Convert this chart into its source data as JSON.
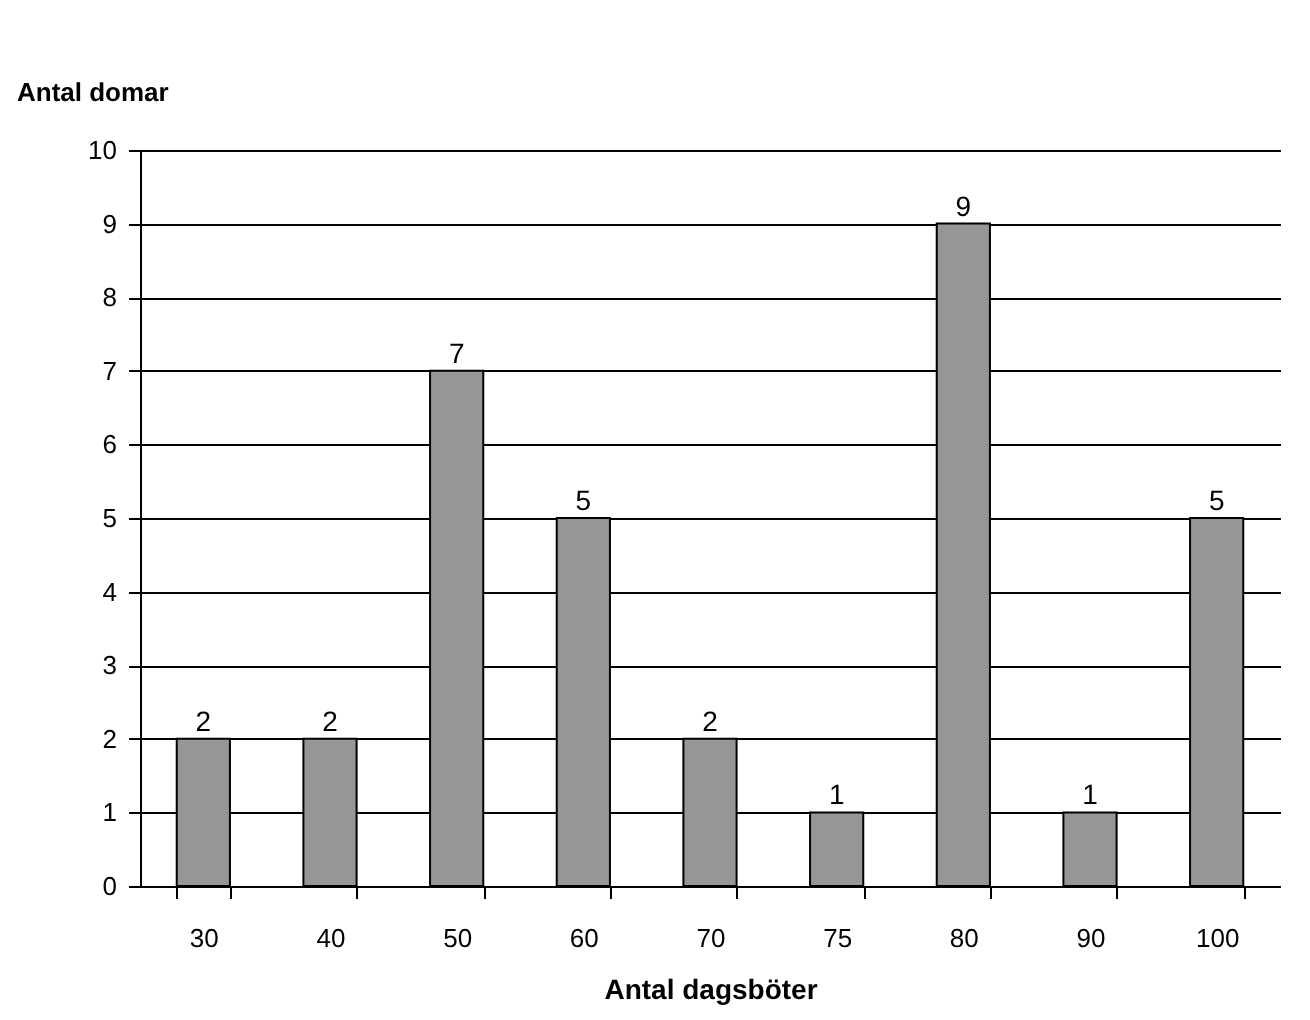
{
  "chart_data": {
    "type": "bar",
    "xlabel": "Antal dagsböter",
    "ylabel": "Antal domar",
    "categories": [
      "30",
      "40",
      "50",
      "60",
      "70",
      "75",
      "80",
      "90",
      "100"
    ],
    "values": [
      2,
      2,
      7,
      5,
      2,
      1,
      9,
      1,
      5
    ],
    "color": "#969696",
    "ylim": [
      0,
      10
    ],
    "yticks": [
      0,
      1,
      2,
      3,
      4,
      5,
      6,
      7,
      8,
      9,
      10
    ],
    "grid": "y",
    "data_labels": true
  }
}
